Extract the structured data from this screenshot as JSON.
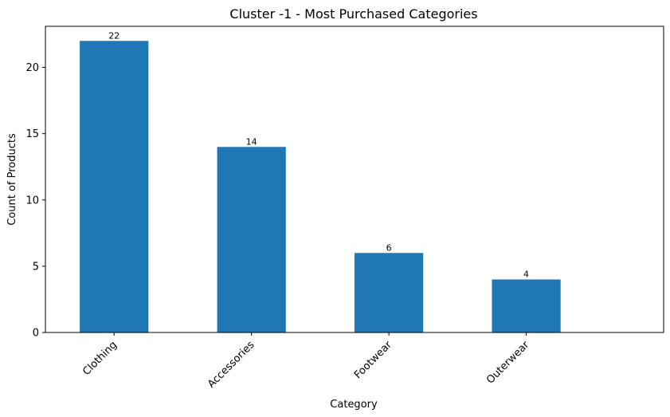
{
  "chart_data": {
    "type": "bar",
    "title": "Cluster -1 - Most Purchased Categories",
    "xlabel": "Category",
    "ylabel": "Count of Products",
    "categories": [
      "Clothing",
      "Accessories",
      "Footwear",
      "Outerwear"
    ],
    "values": [
      22,
      14,
      6,
      4
    ],
    "data_labels": [
      "22",
      "14",
      "6",
      "4"
    ],
    "ylim": [
      0,
      23.1
    ],
    "yticks": [
      0,
      5,
      10,
      15,
      20
    ],
    "ytick_labels": [
      "0",
      "5",
      "10",
      "15",
      "20"
    ],
    "bar_color": "#1f77b4",
    "grid": false,
    "legend": "none"
  }
}
